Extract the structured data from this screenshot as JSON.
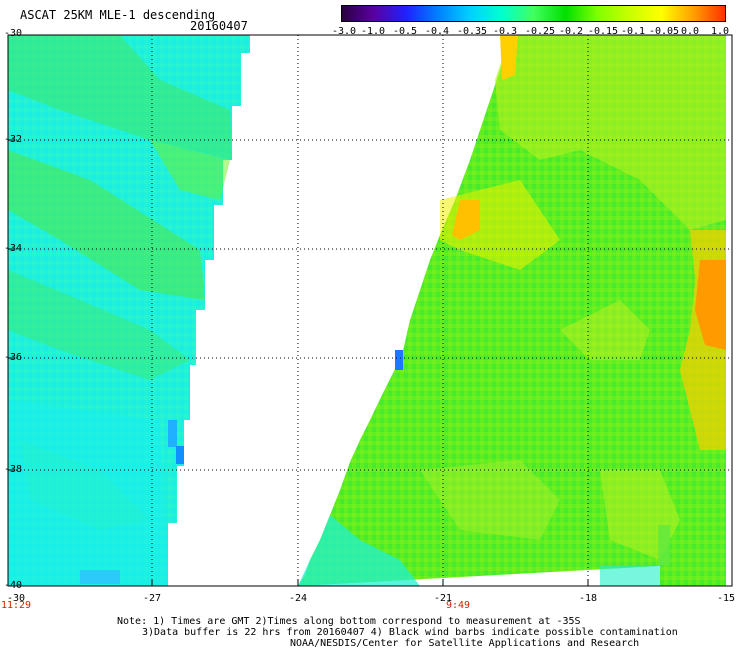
{
  "header": {
    "title": "ASCAT 25KM MLE-1 descending",
    "date": "20160407"
  },
  "colorbar": {
    "labels": [
      "-3.0",
      "-1.0",
      "-0.5",
      "-0.4",
      "-0.35",
      "-0.3",
      "-0.25",
      "-0.2",
      "-0.15",
      "-0.1",
      "-0.05",
      "0.0",
      "1.0"
    ],
    "colors": [
      "#2a0040",
      "#5a00a0",
      "#2020ff",
      "#0080ff",
      "#00d0ff",
      "#00ffd0",
      "#40ff60",
      "#00e000",
      "#80ff00",
      "#c8ff00",
      "#ffff00",
      "#ffa000",
      "#ff3000"
    ]
  },
  "axes": {
    "lat_labels": [
      "-30",
      "-32",
      "-34",
      "-36",
      "-38",
      "-40"
    ],
    "lon_labels": [
      "-30",
      "-27",
      "-24",
      "-21",
      "-18",
      "-15"
    ],
    "time_labels": [
      "11:29",
      "9:49"
    ]
  },
  "notes": {
    "line1": "Note: 1) Times are GMT 2)Times along bottom correspond to measurement at -35S",
    "line2": "3)Data buffer is 22 hrs from 20160407 4) Black wind barbs indicate possible contamination",
    "line3": "NOAA/NESDIS/Center for Satellite Applications and Research"
  }
}
